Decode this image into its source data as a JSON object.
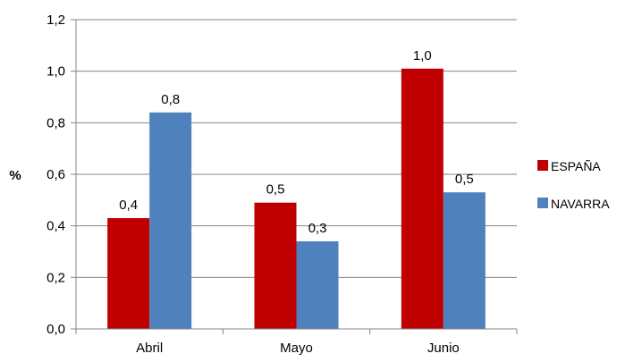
{
  "chart_data": {
    "type": "bar",
    "categories": [
      "Abril",
      "Mayo",
      "Junio"
    ],
    "series": [
      {
        "name": "ESPAÑA",
        "color": "#c00000",
        "values": [
          0.43,
          0.49,
          1.01
        ],
        "labels": [
          "0,4",
          "0,5",
          "1,0"
        ]
      },
      {
        "name": "NAVARRA",
        "color": "#4f81bd",
        "values": [
          0.84,
          0.34,
          0.53
        ],
        "labels": [
          "0,8",
          "0,3",
          "0,5"
        ]
      }
    ],
    "ylabel": "%",
    "ylim": [
      0,
      1.2
    ],
    "yticks": [
      0,
      0.2,
      0.4,
      0.6,
      0.8,
      1.0,
      1.2
    ],
    "ytick_labels": [
      "0,0",
      "0,2",
      "0,4",
      "0,6",
      "0,8",
      "1,0",
      "1,2"
    ],
    "grid": true,
    "legend_position": "right"
  }
}
